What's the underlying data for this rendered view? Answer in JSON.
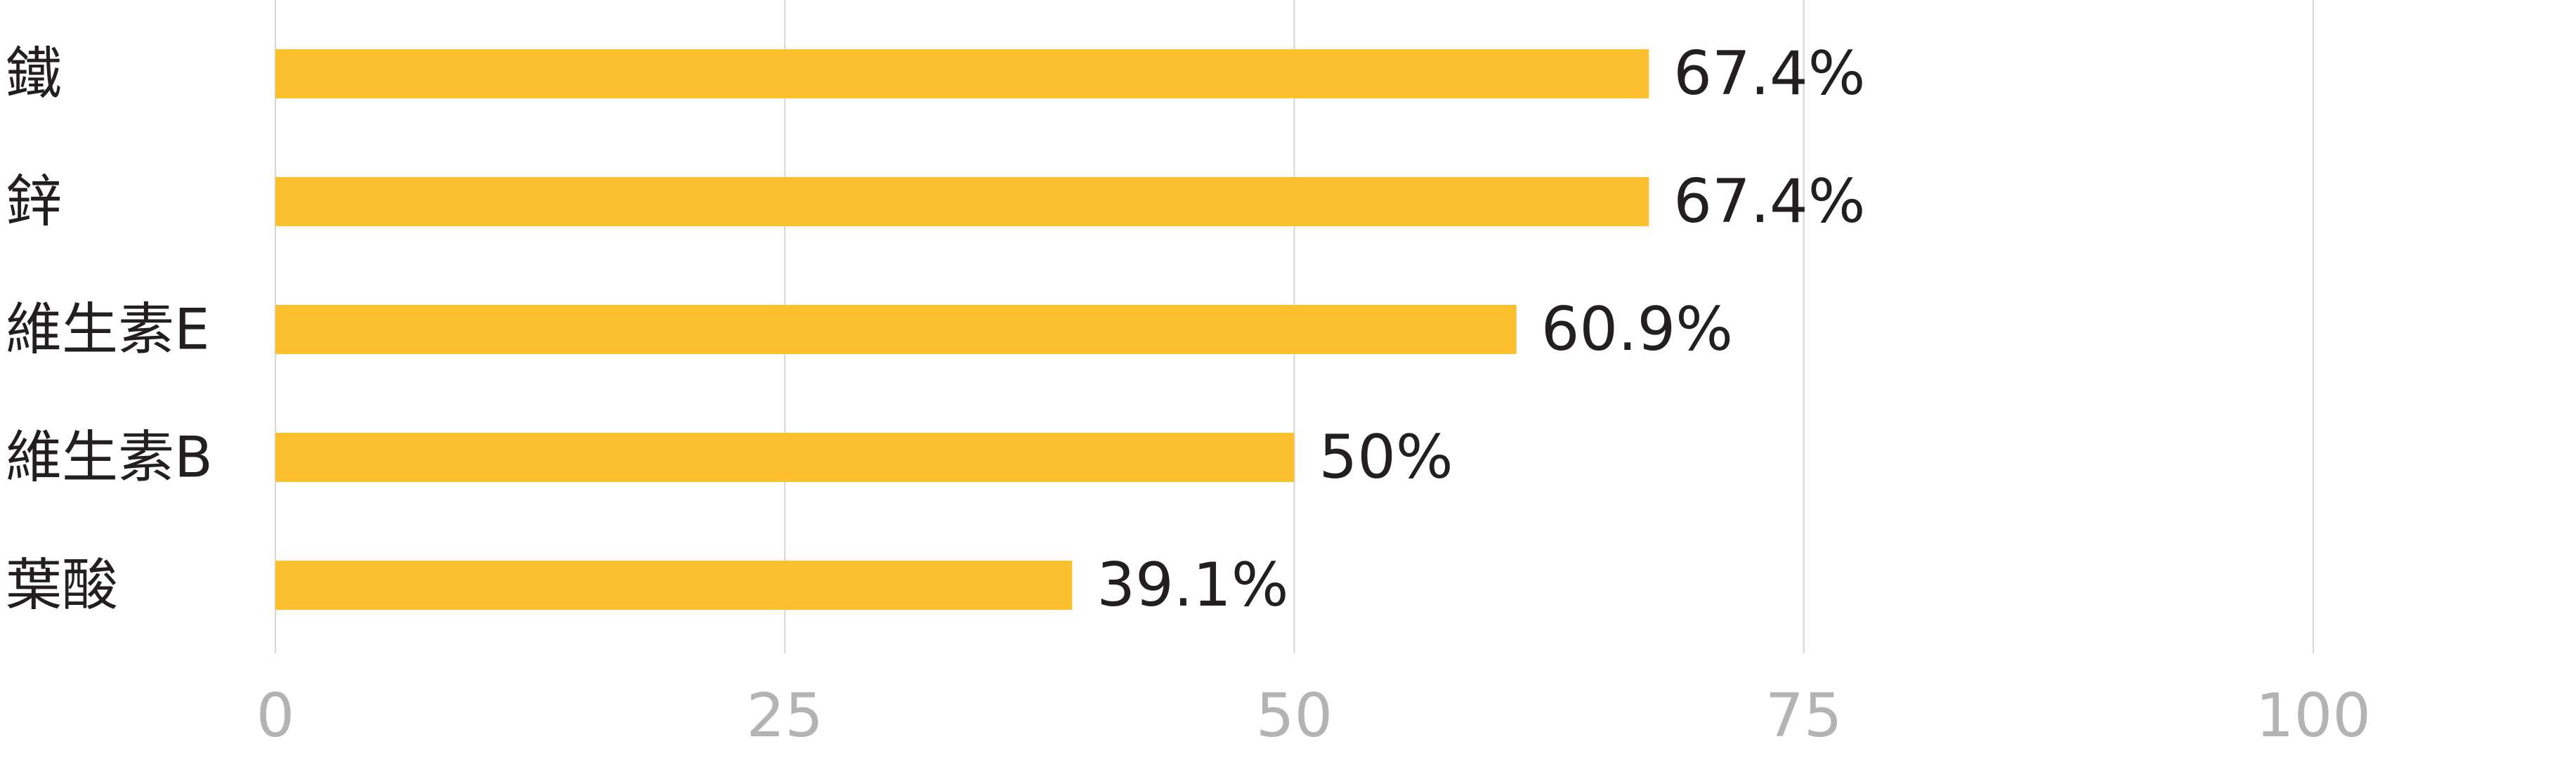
{
  "chart_data": {
    "type": "bar",
    "orientation": "horizontal",
    "categories": [
      "鐵",
      "鋅",
      "維生素E",
      "維生素B",
      "葉酸"
    ],
    "values": [
      67.4,
      67.4,
      60.9,
      50,
      39.1
    ],
    "data_labels": [
      "67.4%",
      "67.4%",
      "60.9%",
      "50%",
      "39.1%"
    ],
    "xlim": [
      0,
      100
    ],
    "x_ticks": [
      0,
      25,
      50,
      75,
      100
    ],
    "x_tick_labels": [
      "0",
      "25",
      "50",
      "75",
      "100"
    ],
    "grid": true,
    "legend": "none",
    "colors": {
      "bar": "#FCC02F",
      "grid": "#D6D6D6",
      "tick_label": "#B3B3B3",
      "category_label": "#231F20",
      "data_label": "#231F20"
    }
  }
}
